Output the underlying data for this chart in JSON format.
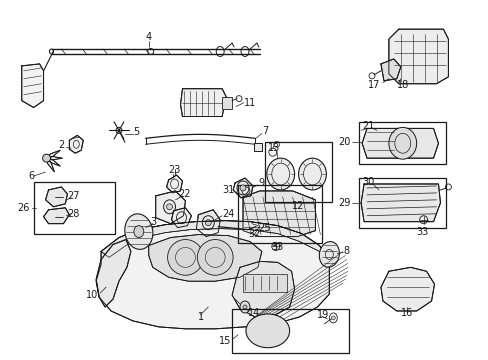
{
  "bg_color": "#ffffff",
  "line_color": "#1a1a1a",
  "figsize": [
    4.89,
    3.6
  ],
  "dpi": 100,
  "label_fs": 7.0,
  "lw": 0.7
}
